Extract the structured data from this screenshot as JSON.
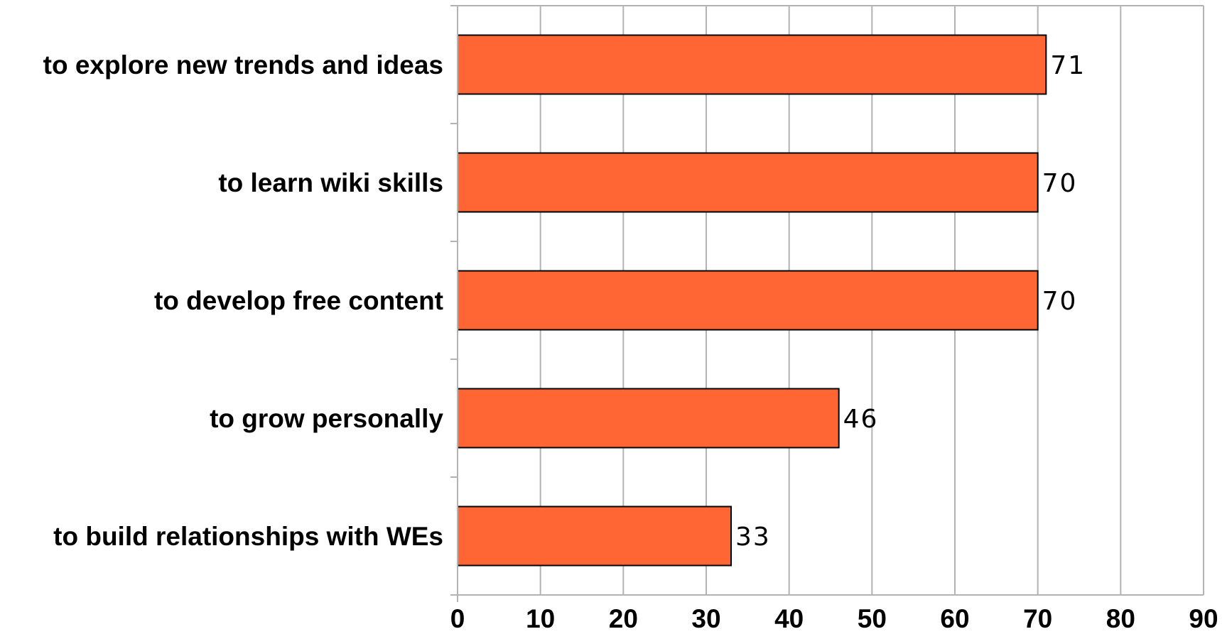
{
  "chart_data": {
    "type": "bar",
    "orientation": "horizontal",
    "title": "",
    "xlabel": "",
    "ylabel": "",
    "categories": [
      "to explore new trends and ideas",
      "to learn wiki skills",
      "to develop free content",
      "to grow personally",
      "to build relationships with WEs"
    ],
    "values": [
      71,
      70,
      70,
      46,
      33
    ],
    "xlim": [
      0,
      90
    ],
    "x_ticks": [
      0,
      10,
      20,
      30,
      40,
      50,
      60,
      70,
      80,
      90
    ],
    "grid": "vertical",
    "legend": "none",
    "data_labels": true,
    "colors": {
      "bar_fill": "#ff6633",
      "bar_stroke": "#000000",
      "grid": "#b3b3b3",
      "background": "#ffffff"
    }
  }
}
